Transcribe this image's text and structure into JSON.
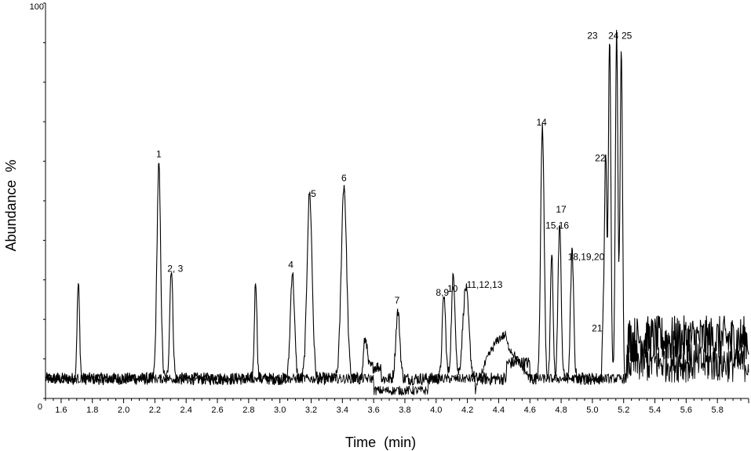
{
  "chart_data": {
    "type": "line",
    "title": "",
    "xlabel": "Time  (min)",
    "ylabel": "Abundance  %",
    "xlim": [
      1.5,
      6.0
    ],
    "ylim": [
      0,
      100
    ],
    "y_tick_labels": [
      "0",
      "100"
    ],
    "x_ticks": [
      1.6,
      1.8,
      2.0,
      2.2,
      2.4,
      2.6,
      2.8,
      3.0,
      3.2,
      3.4,
      3.6,
      3.8,
      4.0,
      4.2,
      4.4,
      4.6,
      4.8,
      5.0,
      5.2,
      5.4,
      5.6,
      5.8
    ],
    "x_tick_labels": [
      "1.6",
      "1.8",
      "2.0",
      "2.2",
      "2.4",
      "2.6",
      "2.8",
      "3.0",
      "3.2",
      "3.4",
      "3.6",
      "3.8",
      "4.0",
      "4.2",
      "4.4",
      "4.6",
      "4.8",
      "5.0",
      "5.2",
      "5.4",
      "5.6",
      "5.8"
    ],
    "grid": false,
    "baseline": 5,
    "peaks": [
      {
        "t": 1.71,
        "h": 24,
        "w": 0.008
      },
      {
        "t": 2.225,
        "h": 54,
        "w": 0.012
      },
      {
        "t": 2.305,
        "h": 28,
        "w": 0.01
      },
      {
        "t": 2.845,
        "h": 25,
        "w": 0.008
      },
      {
        "t": 3.08,
        "h": 27,
        "w": 0.013
      },
      {
        "t": 3.19,
        "h": 47,
        "w": 0.016
      },
      {
        "t": 3.41,
        "h": 49,
        "w": 0.017
      },
      {
        "t": 3.545,
        "h": 10,
        "w": 0.01
      },
      {
        "t": 3.755,
        "h": 17,
        "w": 0.013
      },
      {
        "t": 4.05,
        "h": 21,
        "w": 0.011
      },
      {
        "t": 4.11,
        "h": 26,
        "w": 0.012
      },
      {
        "t": 4.19,
        "h": 23,
        "w": 0.019
      },
      {
        "t": 4.68,
        "h": 64,
        "w": 0.011
      },
      {
        "t": 4.74,
        "h": 32,
        "w": 0.008
      },
      {
        "t": 4.79,
        "h": 39,
        "w": 0.01
      },
      {
        "t": 4.87,
        "h": 32,
        "w": 0.01
      },
      {
        "t": 5.07,
        "h": 15,
        "w": 0.006
      },
      {
        "t": 5.085,
        "h": 57,
        "w": 0.007
      },
      {
        "t": 5.11,
        "h": 86,
        "w": 0.008
      },
      {
        "t": 5.155,
        "h": 89,
        "w": 0.008
      },
      {
        "t": 5.185,
        "h": 82,
        "w": 0.008
      }
    ],
    "peak_labels": [
      {
        "text": "1",
        "t": 2.225,
        "y": 61
      },
      {
        "text": "2, 3",
        "t": 2.33,
        "y": 32
      },
      {
        "text": "4",
        "t": 3.07,
        "y": 33
      },
      {
        "text": "5",
        "t": 3.215,
        "y": 51
      },
      {
        "text": "6",
        "t": 3.41,
        "y": 55
      },
      {
        "text": "7",
        "t": 3.75,
        "y": 24
      },
      {
        "text": "8,9",
        "t": 4.04,
        "y": 26
      },
      {
        "text": "10",
        "t": 4.105,
        "y": 27
      },
      {
        "text": "11,12,13",
        "t": 4.31,
        "y": 28
      },
      {
        "text": "14",
        "t": 4.675,
        "y": 69
      },
      {
        "text": "17",
        "t": 4.8,
        "y": 47
      },
      {
        "text": "15,16",
        "t": 4.775,
        "y": 43
      },
      {
        "text": "18,19,20",
        "t": 4.96,
        "y": 35
      },
      {
        "text": "21",
        "t": 5.03,
        "y": 17
      },
      {
        "text": "22",
        "t": 5.05,
        "y": 60
      },
      {
        "text": "23",
        "t": 5.0,
        "y": 91
      },
      {
        "text": "24",
        "t": 5.135,
        "y": 91
      },
      {
        "text": "25",
        "t": 5.22,
        "y": 91
      }
    ]
  }
}
